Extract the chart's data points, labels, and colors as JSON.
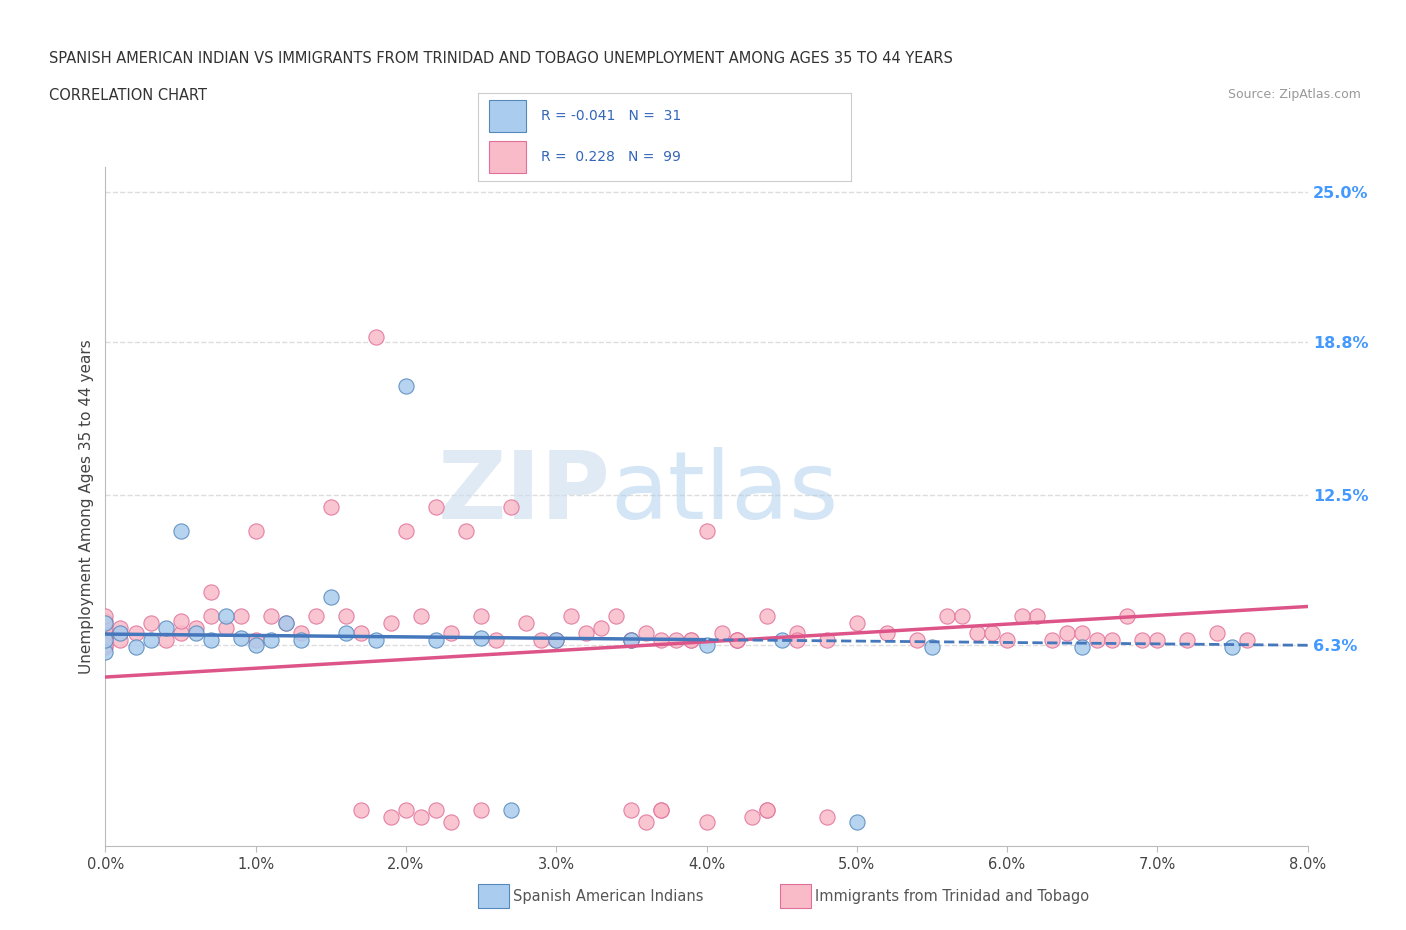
{
  "title_line1": "SPANISH AMERICAN INDIAN VS IMMIGRANTS FROM TRINIDAD AND TOBAGO UNEMPLOYMENT AMONG AGES 35 TO 44 YEARS",
  "title_line2": "CORRELATION CHART",
  "source_text": "Source: ZipAtlas.com",
  "ylabel": "Unemployment Among Ages 35 to 44 years",
  "xmin": 0.0,
  "xmax": 0.08,
  "ymin": -0.02,
  "ymax": 0.26,
  "yticks": [
    0.063,
    0.125,
    0.188,
    0.25
  ],
  "ytick_labels": [
    "6.3%",
    "12.5%",
    "18.8%",
    "25.0%"
  ],
  "xticks": [
    0.0,
    0.01,
    0.02,
    0.03,
    0.04,
    0.05,
    0.06,
    0.07,
    0.08
  ],
  "xtick_labels": [
    "0.0%",
    "1.0%",
    "2.0%",
    "3.0%",
    "4.0%",
    "5.0%",
    "6.0%",
    "7.0%",
    "8.0%"
  ],
  "blue_R": -0.041,
  "blue_N": 31,
  "pink_R": 0.228,
  "pink_N": 99,
  "blue_color": "#aaccee",
  "pink_color": "#f9bbc8",
  "blue_edge_color": "#5588bb",
  "pink_edge_color": "#e0709a",
  "blue_line_color": "#4477bb",
  "pink_line_color": "#dd5588",
  "blue_scatter_x": [
    0.0,
    0.0,
    0.0,
    0.001,
    0.002,
    0.003,
    0.004,
    0.005,
    0.006,
    0.007,
    0.008,
    0.009,
    0.01,
    0.011,
    0.012,
    0.013,
    0.015,
    0.016,
    0.018,
    0.02,
    0.022,
    0.025,
    0.027,
    0.03,
    0.035,
    0.04,
    0.045,
    0.05,
    0.055,
    0.065,
    0.075
  ],
  "blue_scatter_y": [
    0.06,
    0.065,
    0.072,
    0.068,
    0.062,
    0.065,
    0.07,
    0.11,
    0.068,
    0.065,
    0.075,
    0.066,
    0.063,
    0.065,
    0.072,
    0.065,
    0.083,
    0.068,
    0.065,
    0.17,
    0.065,
    0.066,
    -0.005,
    0.065,
    0.065,
    0.063,
    0.065,
    -0.01,
    0.062,
    0.062,
    0.062
  ],
  "pink_scatter_x": [
    0.0,
    0.0,
    0.0,
    0.0,
    0.0,
    0.0,
    0.0,
    0.0,
    0.001,
    0.001,
    0.002,
    0.003,
    0.004,
    0.005,
    0.005,
    0.006,
    0.007,
    0.007,
    0.008,
    0.009,
    0.01,
    0.01,
    0.011,
    0.012,
    0.013,
    0.014,
    0.015,
    0.016,
    0.017,
    0.018,
    0.019,
    0.02,
    0.021,
    0.022,
    0.023,
    0.024,
    0.025,
    0.026,
    0.027,
    0.028,
    0.029,
    0.03,
    0.031,
    0.032,
    0.033,
    0.034,
    0.035,
    0.036,
    0.037,
    0.038,
    0.039,
    0.04,
    0.041,
    0.042,
    0.044,
    0.046,
    0.048,
    0.05,
    0.052,
    0.054,
    0.056,
    0.058,
    0.06,
    0.062,
    0.064,
    0.066,
    0.068,
    0.07,
    0.072,
    0.074,
    0.076,
    0.057,
    0.059,
    0.061,
    0.063,
    0.065,
    0.067,
    0.069,
    0.035,
    0.037,
    0.039,
    0.04,
    0.042,
    0.044,
    0.046,
    0.048,
    0.035,
    0.036,
    0.037,
    0.042,
    0.043,
    0.044,
    0.02,
    0.021,
    0.022,
    0.023,
    0.017,
    0.019,
    0.025
  ],
  "pink_scatter_y": [
    0.062,
    0.065,
    0.067,
    0.068,
    0.07,
    0.073,
    0.075,
    0.063,
    0.065,
    0.07,
    0.068,
    0.072,
    0.065,
    0.068,
    0.073,
    0.07,
    0.075,
    0.085,
    0.07,
    0.075,
    0.065,
    0.11,
    0.075,
    0.072,
    0.068,
    0.075,
    0.12,
    0.075,
    0.068,
    0.19,
    0.072,
    0.11,
    0.075,
    0.12,
    0.068,
    0.11,
    0.075,
    0.065,
    0.12,
    0.072,
    0.065,
    0.065,
    0.075,
    0.068,
    0.07,
    0.075,
    0.065,
    0.068,
    0.065,
    0.065,
    0.065,
    0.11,
    0.068,
    0.065,
    0.075,
    0.068,
    0.065,
    0.072,
    0.068,
    0.065,
    0.075,
    0.068,
    0.065,
    0.075,
    0.068,
    0.065,
    0.075,
    0.065,
    0.065,
    0.068,
    0.065,
    0.075,
    0.068,
    0.075,
    0.065,
    0.068,
    0.065,
    0.065,
    0.065,
    -0.005,
    0.065,
    -0.01,
    0.065,
    -0.005,
    0.065,
    -0.008,
    -0.005,
    -0.01,
    -0.005,
    0.065,
    -0.008,
    -0.005,
    -0.005,
    -0.008,
    -0.005,
    -0.01,
    -0.005,
    -0.008,
    -0.005
  ],
  "watermark_zip": "ZIP",
  "watermark_atlas": "atlas",
  "bg_color": "#ffffff",
  "grid_color": "#dddddd"
}
